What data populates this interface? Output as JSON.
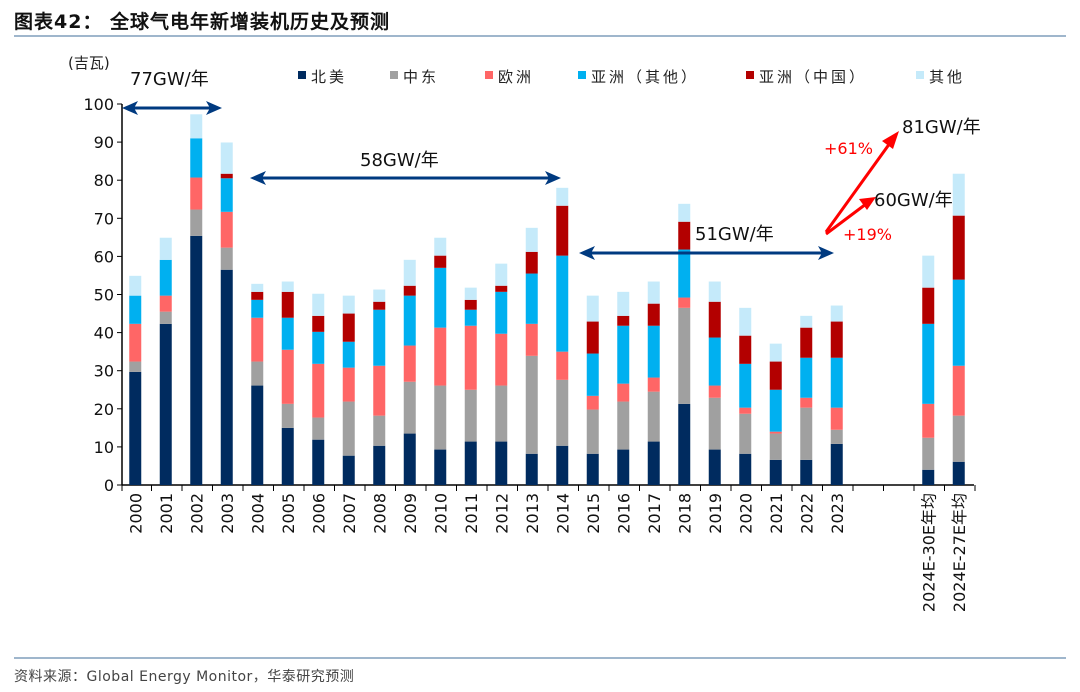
{
  "title": "图表42：  全球气电年新增装机历史及预测",
  "source": "资料来源：Global Energy Monitor，华泰研究预测",
  "chart_data": {
    "type": "bar",
    "stacked": true,
    "ylabel": "(吉瓦)",
    "ylim": [
      0,
      100
    ],
    "yticks": [
      0,
      10,
      20,
      30,
      40,
      50,
      60,
      70,
      80,
      90,
      100
    ],
    "legend_position": "top",
    "grid": false,
    "categories": [
      "2000",
      "2001",
      "2002",
      "2003",
      "2004",
      "2005",
      "2006",
      "2007",
      "2008",
      "2009",
      "2010",
      "2011",
      "2012",
      "2013",
      "2014",
      "2015",
      "2016",
      "2017",
      "2018",
      "2019",
      "2020",
      "2021",
      "2022",
      "2023",
      "",
      "",
      "2024E-30E年均",
      "2024E-27E年均"
    ],
    "series": [
      {
        "name": "北美",
        "color": "#002b5f",
        "values": [
          29.7,
          42.3,
          65.4,
          56.5,
          26.1,
          15.0,
          11.9,
          7.7,
          10.3,
          13.5,
          9.3,
          11.4,
          11.4,
          8.2,
          10.3,
          8.2,
          9.3,
          11.4,
          21.3,
          9.3,
          8.2,
          6.6,
          6.6,
          10.8,
          null,
          null,
          4.0,
          6.1
        ]
      },
      {
        "name": "中东",
        "color": "#a0a0a0",
        "values": [
          2.7,
          3.2,
          6.9,
          5.8,
          6.3,
          6.3,
          5.8,
          14.2,
          7.9,
          13.6,
          16.8,
          13.6,
          14.7,
          25.7,
          17.3,
          11.6,
          12.6,
          13.1,
          25.2,
          13.6,
          10.5,
          6.9,
          13.7,
          3.7,
          null,
          null,
          8.4,
          12.1
        ]
      },
      {
        "name": "欧洲",
        "color": "#ff6666",
        "values": [
          9.9,
          4.2,
          8.4,
          9.4,
          11.5,
          14.2,
          14.1,
          8.9,
          13.1,
          9.5,
          15.2,
          16.8,
          13.6,
          8.4,
          7.4,
          3.6,
          4.7,
          3.7,
          2.7,
          3.2,
          1.6,
          0.5,
          2.6,
          5.8,
          null,
          null,
          8.9,
          13.1
        ]
      },
      {
        "name": "亚洲（其他）",
        "color": "#00b0f0",
        "values": [
          7.4,
          9.4,
          10.3,
          8.8,
          4.7,
          8.4,
          8.4,
          6.8,
          14.7,
          13.1,
          15.7,
          4.2,
          11.0,
          13.2,
          25.2,
          11.1,
          15.2,
          13.6,
          12.6,
          12.6,
          11.5,
          11.0,
          10.5,
          13.1,
          null,
          null,
          21.0,
          22.6
        ]
      },
      {
        "name": "亚洲（中国）",
        "color": "#b30000",
        "values": [
          0,
          0,
          0,
          1.2,
          2.1,
          6.8,
          4.2,
          7.4,
          2.1,
          2.6,
          3.2,
          2.6,
          1.6,
          5.7,
          13.1,
          8.4,
          2.6,
          5.8,
          7.3,
          9.4,
          7.4,
          7.4,
          7.9,
          9.5,
          null,
          null,
          9.5,
          16.8
        ]
      },
      {
        "name": "其他",
        "color": "#c5eafa",
        "values": [
          5.2,
          5.8,
          6.3,
          8.2,
          2.1,
          2.7,
          5.8,
          4.7,
          3.2,
          6.8,
          4.7,
          3.2,
          5.8,
          6.3,
          4.7,
          6.8,
          6.3,
          5.8,
          4.7,
          5.3,
          7.3,
          4.7,
          3.1,
          4.2,
          null,
          null,
          8.4,
          11.0
        ]
      }
    ],
    "annotations": [
      {
        "text": "77GW/年",
        "color": "#111111"
      },
      {
        "text": "58GW/年",
        "color": "#111111"
      },
      {
        "text": "51GW/年",
        "color": "#111111"
      },
      {
        "text": "81GW/年",
        "color": "#111111"
      },
      {
        "text": "60GW/年",
        "color": "#111111"
      },
      {
        "text": "+61%",
        "color": "#ff0000"
      },
      {
        "text": "+19%",
        "color": "#ff0000"
      }
    ],
    "arrow_color": "#003a80",
    "growth_arrow_color": "#ff0000"
  }
}
